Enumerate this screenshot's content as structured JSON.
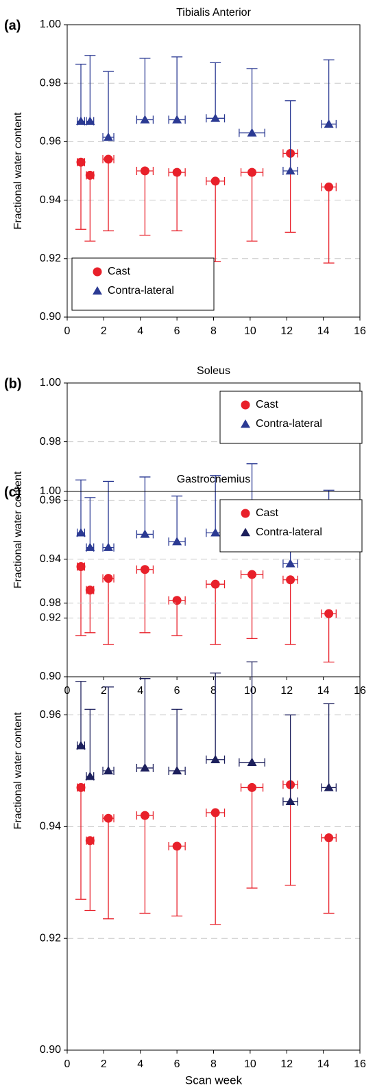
{
  "chart_data": [
    {
      "type": "scatter",
      "panel_label": "(a)",
      "title": "Tibialis Anterior",
      "ylabel": "Fractional water content",
      "x": [
        0.75,
        1.25,
        2.25,
        4.25,
        6.0,
        8.1,
        10.1,
        12.2,
        14.3
      ],
      "series": [
        {
          "name": "Cast",
          "color": "#e8202a",
          "marker": "circle",
          "error_direction": "down",
          "values": [
            0.953,
            0.9485,
            0.954,
            0.95,
            0.9495,
            0.9465,
            0.9495,
            0.956,
            0.9445
          ],
          "yerr": [
            0.023,
            0.0225,
            0.0245,
            0.022,
            0.02,
            0.0275,
            0.0235,
            0.027,
            0.026
          ],
          "xerr": [
            0.2,
            0.2,
            0.3,
            0.45,
            0.45,
            0.5,
            0.6,
            0.4,
            0.4
          ]
        },
        {
          "name": "Contra-lateral",
          "color": "#2b3a93",
          "marker": "triangle",
          "error_direction": "up",
          "values": [
            0.967,
            0.967,
            0.9615,
            0.9675,
            0.9675,
            0.968,
            0.963,
            0.95,
            0.966
          ],
          "yerr": [
            0.0195,
            0.0225,
            0.0225,
            0.021,
            0.0215,
            0.019,
            0.022,
            0.024,
            0.022
          ],
          "xerr": [
            0.2,
            0.2,
            0.3,
            0.45,
            0.45,
            0.5,
            0.7,
            0.4,
            0.4
          ]
        }
      ],
      "xlim": [
        0,
        16
      ],
      "xticks": [
        0,
        2,
        4,
        6,
        8,
        10,
        12,
        14,
        16
      ],
      "ylim": [
        0.9,
        1.0
      ],
      "yticks": [
        {
          "value": 0.9,
          "label": "0.90"
        },
        0.92,
        0.94,
        0.96,
        0.98,
        {
          "value": 1.0,
          "label": "1.00"
        }
      ],
      "grid": true,
      "legend": "lower left"
    },
    {
      "type": "scatter",
      "panel_label": "(b)",
      "title": "Soleus",
      "ylabel": "Fractional water content",
      "x": [
        0.75,
        1.25,
        2.25,
        4.25,
        6.0,
        8.1,
        10.1,
        12.2,
        14.3
      ],
      "series": [
        {
          "name": "Cast",
          "color": "#e8202a",
          "marker": "circle",
          "error_direction": "down",
          "values": [
            0.9375,
            0.9295,
            0.9335,
            0.9365,
            0.926,
            0.9315,
            0.9348,
            0.933,
            0.9215
          ],
          "yerr": [
            0.0235,
            0.0145,
            0.0225,
            0.0215,
            0.012,
            0.0205,
            0.0218,
            0.022,
            0.0165
          ],
          "xerr": [
            0.2,
            0.2,
            0.3,
            0.45,
            0.45,
            0.5,
            0.6,
            0.4,
            0.4
          ]
        },
        {
          "name": "Contra-lateral",
          "color": "#2b3a93",
          "marker": "triangle",
          "error_direction": "up",
          "values": [
            0.949,
            0.944,
            0.944,
            0.9485,
            0.946,
            0.949,
            0.952,
            0.9385,
            0.9445
          ],
          "yerr": [
            0.018,
            0.017,
            0.0225,
            0.0195,
            0.0155,
            0.0195,
            0.0205,
            0.0195,
            0.019
          ],
          "xerr": [
            0.2,
            0.2,
            0.3,
            0.45,
            0.45,
            0.5,
            0.7,
            0.4,
            0.4
          ]
        }
      ],
      "xlim": [
        0,
        16
      ],
      "xticks": [
        0,
        2,
        4,
        6,
        8,
        10,
        12,
        14,
        16
      ],
      "ylim": [
        0.9,
        1.0
      ],
      "yticks": [
        {
          "value": 0.9,
          "label": "0.90"
        },
        0.92,
        0.94,
        0.96,
        0.98,
        {
          "value": 1.0,
          "label": "1.00"
        }
      ],
      "grid": true,
      "legend": "upper right"
    },
    {
      "type": "scatter",
      "panel_label": "(c)",
      "title": "Gastrocnemius",
      "ylabel": "Fractional water content",
      "xlabel": "Scan week",
      "x": [
        0.75,
        1.25,
        2.25,
        4.25,
        6.0,
        8.1,
        10.1,
        12.2,
        14.3
      ],
      "series": [
        {
          "name": "Cast",
          "color": "#e8202a",
          "marker": "circle",
          "error_direction": "down",
          "values": [
            0.947,
            0.9375,
            0.9415,
            0.942,
            0.9365,
            0.9425,
            0.947,
            0.9475,
            0.938
          ],
          "yerr": [
            0.02,
            0.0125,
            0.018,
            0.0175,
            0.0125,
            0.02,
            0.018,
            0.018,
            0.0135
          ],
          "xerr": [
            0.2,
            0.2,
            0.3,
            0.45,
            0.45,
            0.5,
            0.6,
            0.4,
            0.4
          ]
        },
        {
          "name": "Contra-lateral",
          "color": "#1c1f5c",
          "marker": "triangle",
          "error_direction": "up",
          "values": [
            0.9545,
            0.949,
            0.95,
            0.9505,
            0.95,
            0.952,
            0.9515,
            0.9445,
            0.947
          ],
          "yerr": [
            0.0115,
            0.012,
            0.015,
            0.016,
            0.011,
            0.0155,
            0.018,
            0.0155,
            0.015
          ],
          "xerr": [
            0.2,
            0.2,
            0.3,
            0.45,
            0.45,
            0.5,
            0.7,
            0.4,
            0.4
          ]
        }
      ],
      "xlim": [
        0,
        16
      ],
      "xticks": [
        0,
        2,
        4,
        6,
        8,
        10,
        12,
        14,
        16
      ],
      "ylim": [
        0.9,
        1.0
      ],
      "yticks": [
        {
          "value": 0.9,
          "label": "0.90"
        },
        0.92,
        0.94,
        0.96,
        0.98,
        {
          "value": 1.0,
          "label": "1.00"
        }
      ],
      "grid": true,
      "legend": "upper right"
    }
  ]
}
